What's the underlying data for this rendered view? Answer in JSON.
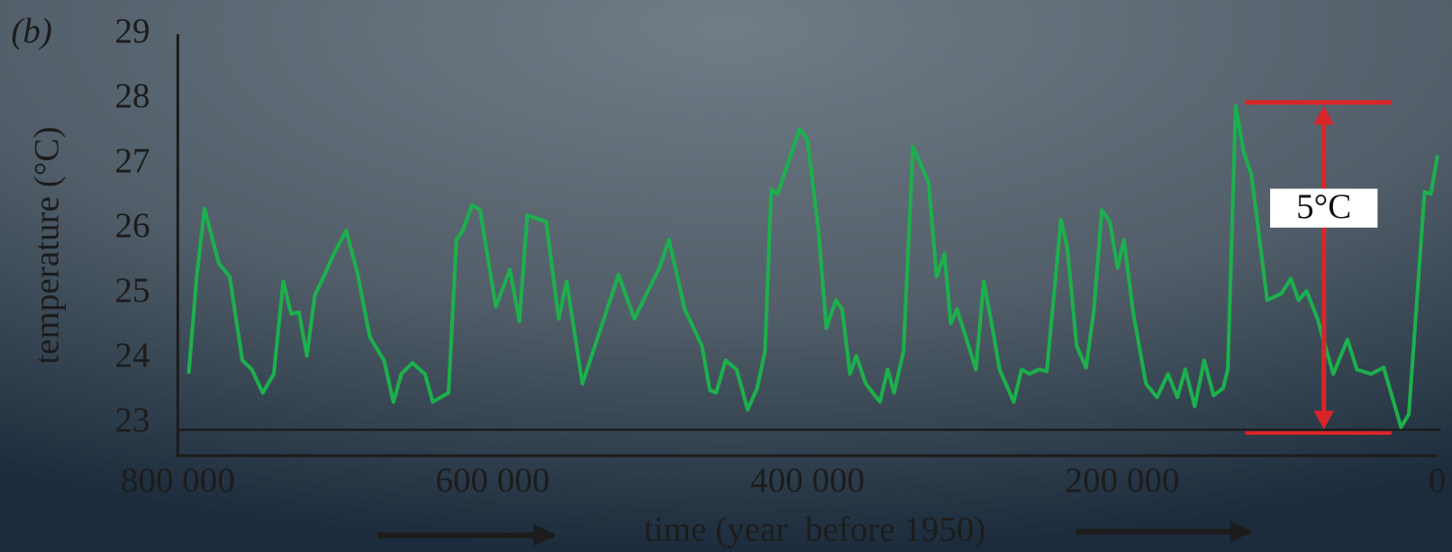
{
  "chart_data": {
    "type": "line",
    "panel_label": "(b)",
    "y_label": "temperature (°C)",
    "x_label": "time (year  before 1950)",
    "color": "#1cb04c",
    "xlim": [
      800000,
      0
    ],
    "ylim": [
      22.5,
      29
    ],
    "xticks": [
      {
        "value": 800000,
        "label": "800 000"
      },
      {
        "value": 600000,
        "label": "600 000"
      },
      {
        "value": 400000,
        "label": "400 000"
      },
      {
        "value": 200000,
        "label": "200 000"
      },
      0
    ],
    "yticks": [
      23,
      24,
      25,
      26,
      27,
      28,
      29
    ],
    "hline": 22.9,
    "annotation": {
      "text": "5°C",
      "x": [
        122000,
        29000
      ],
      "arrow_x": 72000,
      "y": [
        22.85,
        27.95
      ],
      "color": "#d9252a"
    },
    "x": [
      793000,
      788000,
      783000,
      774000,
      767000,
      759000,
      753000,
      746000,
      739000,
      733000,
      728000,
      723000,
      718000,
      713000,
      706000,
      701000,
      693000,
      686000,
      678000,
      669000,
      663000,
      658000,
      651000,
      643000,
      638000,
      628000,
      623000,
      619000,
      613000,
      608000,
      598000,
      589000,
      583000,
      578000,
      566000,
      558000,
      553000,
      543000,
      520000,
      510000,
      494000,
      488000,
      478000,
      467000,
      462000,
      458000,
      452000,
      445000,
      438000,
      432000,
      427000,
      423000,
      419000,
      405000,
      400000,
      393000,
      388000,
      382000,
      378000,
      373000,
      369000,
      363000,
      354000,
      349000,
      345000,
      339000,
      333000,
      323000,
      318000,
      313000,
      309000,
      305000,
      293000,
      288000,
      282000,
      278000,
      269000,
      264000,
      259000,
      253000,
      248000,
      239000,
      235000,
      229000,
      223000,
      218000,
      213000,
      208000,
      203000,
      199000,
      193000,
      185000,
      178000,
      171000,
      165000,
      160000,
      154000,
      148000,
      142000,
      136000,
      133000,
      128000,
      123000,
      118000,
      108000,
      99000,
      93000,
      88000,
      83000,
      76000,
      66000,
      57000,
      51000,
      42000,
      34000,
      23000,
      18000,
      8000,
      4000,
      0
    ],
    "values": [
      23.79,
      25.26,
      26.31,
      25.47,
      25.26,
      23.97,
      23.83,
      23.47,
      23.76,
      25.19,
      24.69,
      24.71,
      24.04,
      24.97,
      25.33,
      25.61,
      25.97,
      25.33,
      24.33,
      23.97,
      23.33,
      23.76,
      23.93,
      23.76,
      23.33,
      23.47,
      25.83,
      25.97,
      26.37,
      26.29,
      24.8,
      25.37,
      24.57,
      26.21,
      26.11,
      24.61,
      25.19,
      23.61,
      25.29,
      24.61,
      25.4,
      25.83,
      24.76,
      24.19,
      23.51,
      23.47,
      23.97,
      23.83,
      23.21,
      23.54,
      24.11,
      26.61,
      26.54,
      27.54,
      27.37,
      25.97,
      24.47,
      24.9,
      24.76,
      23.76,
      24.04,
      23.61,
      23.33,
      23.83,
      23.47,
      24.11,
      27.26,
      26.71,
      25.26,
      25.61,
      24.54,
      24.76,
      23.83,
      25.19,
      24.4,
      23.83,
      23.33,
      23.83,
      23.76,
      23.83,
      23.8,
      26.14,
      25.71,
      24.19,
      23.86,
      24.76,
      26.29,
      26.11,
      25.4,
      25.83,
      24.69,
      23.61,
      23.4,
      23.76,
      23.4,
      23.83,
      23.26,
      23.97,
      23.43,
      23.54,
      23.83,
      27.89,
      27.19,
      26.83,
      24.9,
      25.0,
      25.23,
      24.9,
      25.04,
      24.61,
      23.76,
      24.29,
      23.83,
      23.76,
      23.86,
      22.94,
      23.14,
      26.57,
      26.54,
      27.11
    ]
  }
}
